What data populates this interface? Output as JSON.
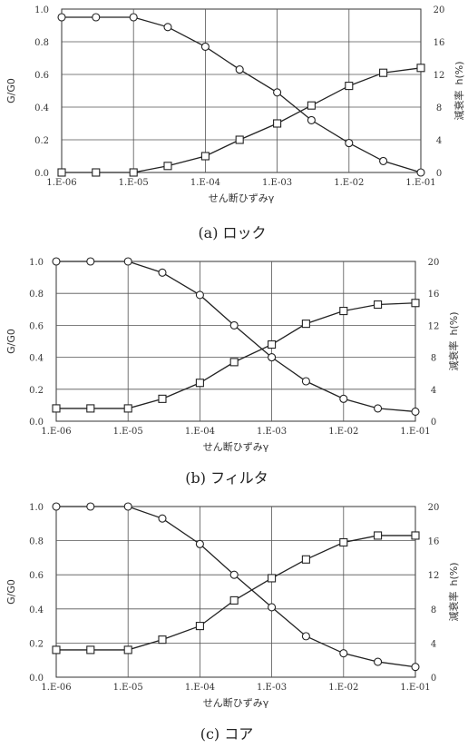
{
  "charts": [
    {
      "id": "a",
      "caption": "(a) ロック",
      "xlabel": "せん断ひずみγ",
      "ylabel_left": "G/G0",
      "ylabel_right_a": "減衰率",
      "ylabel_right_b": "h(%)",
      "x_ticks": [
        "1.E-06",
        "1.E-05",
        "1.E-04",
        "1.E-03",
        "1.E-02",
        "1.E-01"
      ],
      "yl_ticks": [
        "0.0",
        "0.2",
        "0.4",
        "0.6",
        "0.8",
        "1.0"
      ],
      "yr_ticks": [
        "0",
        "4",
        "8",
        "12",
        "16",
        "20"
      ]
    },
    {
      "id": "b",
      "caption": "(b) フィルタ",
      "xlabel": "せん断ひずみγ",
      "ylabel_left": "G/G0",
      "ylabel_right_a": "減衰率",
      "ylabel_right_b": "h(%)",
      "x_ticks": [
        "1.E-06",
        "1.E-05",
        "1.E-04",
        "1.E-03",
        "1.E-02",
        "1.E-01"
      ],
      "yl_ticks": [
        "0.0",
        "0.2",
        "0.4",
        "0.6",
        "0.8",
        "1.0"
      ],
      "yr_ticks": [
        "0",
        "4",
        "8",
        "12",
        "16",
        "20"
      ]
    },
    {
      "id": "c",
      "caption": "(c) コア",
      "xlabel": "せん断ひずみγ",
      "ylabel_left": "G/G0",
      "ylabel_right_a": "減衰率",
      "ylabel_right_b": "h(%)",
      "x_ticks": [
        "1.E-06",
        "1.E-05",
        "1.E-04",
        "1.E-03",
        "1.E-02",
        "1.E-01"
      ],
      "yl_ticks": [
        "0.0",
        "0.2",
        "0.4",
        "0.6",
        "0.8",
        "1.0"
      ],
      "yr_ticks": [
        "0",
        "4",
        "8",
        "12",
        "16",
        "20"
      ]
    }
  ],
  "chart_data": [
    {
      "type": "line",
      "caption": "(a) ロック",
      "xlabel": "せん断ひずみγ",
      "ylabel": "G/G0",
      "y2label": "減衰率 h(%)",
      "xscale": "log",
      "xlim": [
        1e-06,
        0.1
      ],
      "ylim": [
        0,
        1.0
      ],
      "y2lim": [
        0,
        20
      ],
      "grid": true,
      "series": [
        {
          "marker": "circle",
          "axis": "left",
          "x": [
            1e-06,
            3e-06,
            1e-05,
            3e-05,
            0.0001,
            0.0003,
            0.001,
            0.003,
            0.01,
            0.03,
            0.1
          ],
          "y": [
            0.95,
            0.95,
            0.95,
            0.89,
            0.77,
            0.63,
            0.49,
            0.32,
            0.18,
            0.07,
            0.0
          ]
        },
        {
          "marker": "square",
          "axis": "right",
          "x": [
            1e-06,
            3e-06,
            1e-05,
            3e-05,
            0.0001,
            0.0003,
            0.001,
            0.003,
            0.01,
            0.03,
            0.1
          ],
          "y": [
            0.0,
            0.0,
            0.0,
            0.8,
            2.0,
            4.0,
            6.0,
            8.2,
            10.6,
            12.2,
            12.8
          ]
        }
      ]
    },
    {
      "type": "line",
      "caption": "(b) フィルタ",
      "xlabel": "せん断ひずみγ",
      "ylabel": "G/G0",
      "y2label": "減衰率 h(%)",
      "xscale": "log",
      "xlim": [
        1e-06,
        0.1
      ],
      "ylim": [
        0,
        1.0
      ],
      "y2lim": [
        0,
        20
      ],
      "grid": true,
      "series": [
        {
          "marker": "circle",
          "axis": "left",
          "x": [
            1e-06,
            3e-06,
            1e-05,
            3e-05,
            0.0001,
            0.0003,
            0.001,
            0.003,
            0.01,
            0.03,
            0.1
          ],
          "y": [
            1.0,
            1.0,
            1.0,
            0.93,
            0.79,
            0.6,
            0.4,
            0.25,
            0.14,
            0.08,
            0.06
          ]
        },
        {
          "marker": "square",
          "axis": "right",
          "x": [
            1e-06,
            3e-06,
            1e-05,
            3e-05,
            0.0001,
            0.0003,
            0.001,
            0.003,
            0.01,
            0.03,
            0.1
          ],
          "y": [
            1.6,
            1.6,
            1.6,
            2.8,
            4.8,
            7.4,
            9.6,
            12.2,
            13.8,
            14.6,
            14.8
          ]
        }
      ]
    },
    {
      "type": "line",
      "caption": "(c) コア",
      "xlabel": "せん断ひずみγ",
      "ylabel": "G/G0",
      "y2label": "減衰率 h(%)",
      "xscale": "log",
      "xlim": [
        1e-06,
        0.1
      ],
      "ylim": [
        0,
        1.0
      ],
      "y2lim": [
        0,
        20
      ],
      "grid": true,
      "series": [
        {
          "marker": "circle",
          "axis": "left",
          "x": [
            1e-06,
            3e-06,
            1e-05,
            3e-05,
            0.0001,
            0.0003,
            0.001,
            0.003,
            0.01,
            0.03,
            0.1
          ],
          "y": [
            1.0,
            1.0,
            1.0,
            0.93,
            0.78,
            0.6,
            0.41,
            0.24,
            0.14,
            0.09,
            0.06
          ]
        },
        {
          "marker": "square",
          "axis": "right",
          "x": [
            1e-06,
            3e-06,
            1e-05,
            3e-05,
            0.0001,
            0.0003,
            0.001,
            0.003,
            0.01,
            0.03,
            0.1
          ],
          "y": [
            3.2,
            3.2,
            3.2,
            4.4,
            6.0,
            9.0,
            11.6,
            13.8,
            15.8,
            16.6,
            16.6
          ]
        }
      ]
    }
  ]
}
